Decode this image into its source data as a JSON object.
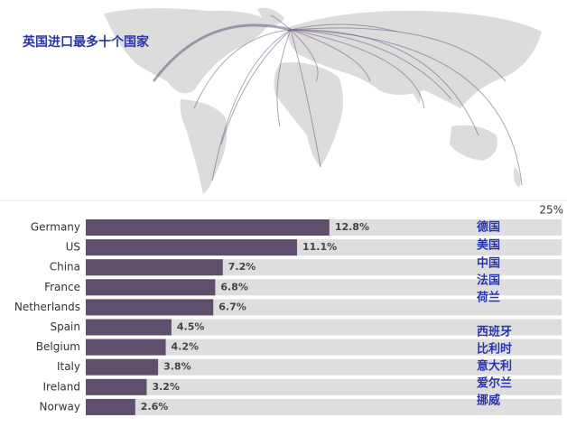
{
  "chart_data": {
    "type": "bar",
    "orientation": "horizontal",
    "title": "英国进口最多十个国家",
    "categories": [
      "Germany",
      "US",
      "China",
      "France",
      "Netherlands",
      "Spain",
      "Belgium",
      "Italy",
      "Ireland",
      "Norway"
    ],
    "values": [
      12.8,
      11.1,
      7.2,
      6.8,
      6.7,
      4.5,
      4.2,
      3.8,
      3.2,
      2.6
    ],
    "value_labels": [
      "12.8%",
      "11.1%",
      "7.2%",
      "6.8%",
      "6.7%",
      "4.5%",
      "4.2%",
      "3.8%",
      "3.2%",
      "2.6%"
    ],
    "annotations": [
      "德国",
      "美国",
      "中国",
      "法国",
      "荷兰",
      "西班牙",
      "比利时",
      "意大利",
      "爱尔兰",
      "挪威"
    ],
    "color": "#5f4e6c",
    "xlim": [
      0,
      25
    ],
    "xticks": [
      {
        "value": 25,
        "label": "25%"
      }
    ]
  }
}
